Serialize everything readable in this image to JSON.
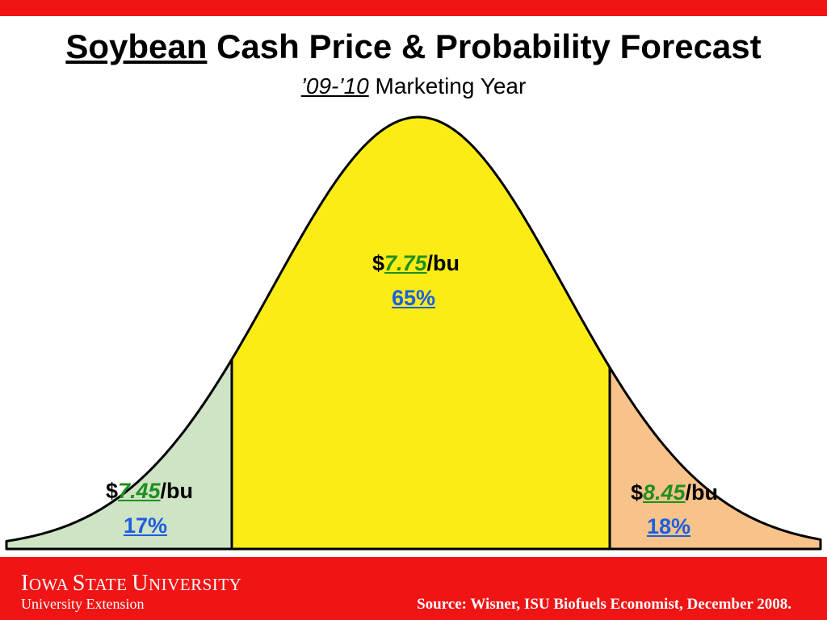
{
  "header": {
    "title_underlined": "Soybean",
    "title_rest": " Cash Price & Probability Forecast",
    "subtitle_underlined": "’09-’10",
    "subtitle_rest": " Marketing Year"
  },
  "chart_data": {
    "type": "area",
    "title": "Soybean Cash Price & Probability Forecast",
    "subtitle": "’09-’10 Marketing Year",
    "regions": [
      {
        "price_prefix": "$",
        "price": "7.45",
        "price_unit": "/bu",
        "probability": "17%",
        "color": "#cfe3c5"
      },
      {
        "price_prefix": "$",
        "price": "7.75",
        "price_unit": "/bu",
        "probability": "65%",
        "color": "#fbec16"
      },
      {
        "price_prefix": "$",
        "price": "8.45",
        "price_unit": "/bu",
        "probability": "18%",
        "color": "#f8c38a"
      }
    ]
  },
  "footer": {
    "logo_line1_parts": [
      "I",
      "OWA ",
      "S",
      "TATE ",
      "U",
      "NIVERSITY"
    ],
    "logo_line2": "University Extension",
    "source": "Source:  Wisner, ISU Biofuels Economist, December 2008."
  },
  "colors": {
    "accent_red": "#f01414",
    "price_green": "#1f8f1f",
    "prob_blue": "#1a5fe0"
  }
}
